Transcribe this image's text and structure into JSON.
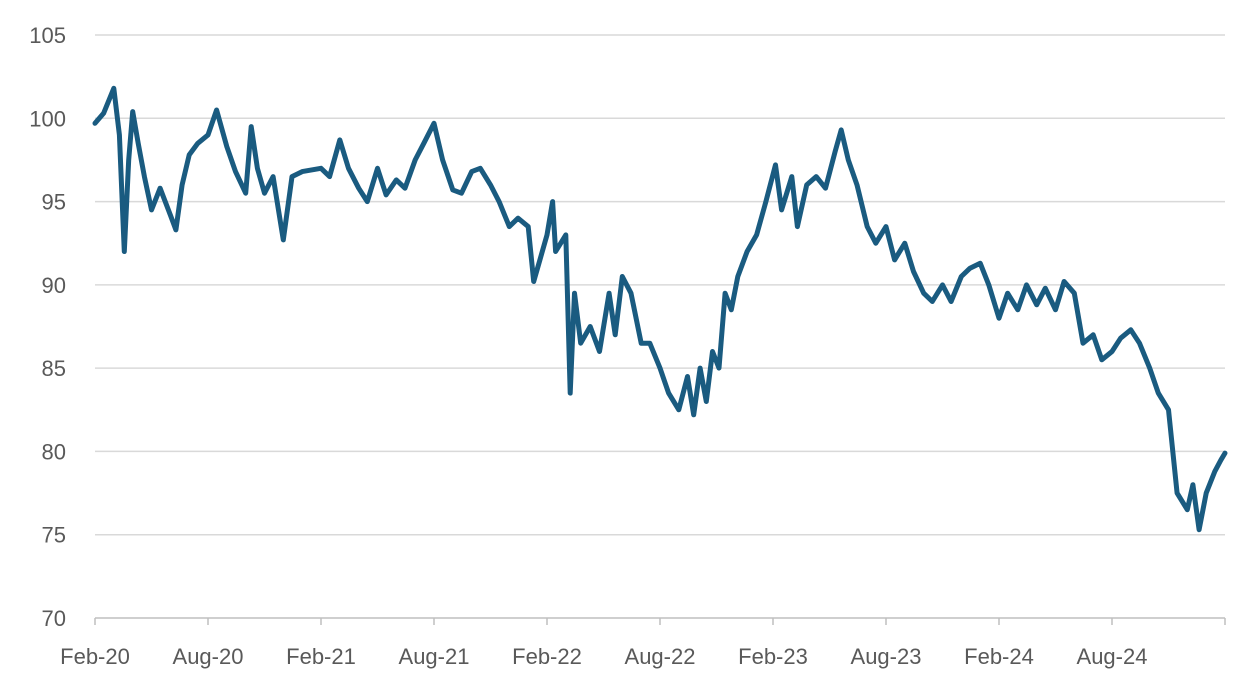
{
  "chart_data": {
    "type": "line",
    "title": "",
    "xlabel": "",
    "ylabel": "",
    "ylim": [
      70,
      105
    ],
    "yticks": [
      70,
      75,
      80,
      85,
      90,
      95,
      100,
      105
    ],
    "xticks": [
      "Feb-20",
      "Aug-20",
      "Feb-21",
      "Aug-21",
      "Feb-22",
      "Aug-22",
      "Feb-23",
      "Aug-23",
      "Feb-24",
      "Aug-24"
    ],
    "xlim": [
      "2020-02",
      "2025-02"
    ],
    "grid": true,
    "legend": "none",
    "colors": {
      "series": "#1a5b80",
      "grid": "#d9d9d9",
      "text": "#595959"
    },
    "series": [
      {
        "points": [
          [
            "2020-02",
            99.7
          ],
          [
            "2020-02-15",
            100.3
          ],
          [
            "2020-03-01",
            101.8
          ],
          [
            "2020-03-10",
            99.0
          ],
          [
            "2020-03-18",
            92.0
          ],
          [
            "2020-03-25",
            97.5
          ],
          [
            "2020-04-01",
            100.4
          ],
          [
            "2020-04-10",
            98.5
          ],
          [
            "2020-04-20",
            96.5
          ],
          [
            "2020-05-01",
            94.5
          ],
          [
            "2020-05-15",
            95.8
          ],
          [
            "2020-06-01",
            94.2
          ],
          [
            "2020-06-10",
            93.3
          ],
          [
            "2020-06-20",
            96.0
          ],
          [
            "2020-07-01",
            97.8
          ],
          [
            "2020-07-15",
            98.5
          ],
          [
            "2020-08-01",
            99.0
          ],
          [
            "2020-08-15",
            100.5
          ],
          [
            "2020-09-01",
            98.3
          ],
          [
            "2020-09-15",
            96.8
          ],
          [
            "2020-10-01",
            95.5
          ],
          [
            "2020-10-10",
            99.5
          ],
          [
            "2020-10-20",
            97.0
          ],
          [
            "2020-11-01",
            95.5
          ],
          [
            "2020-11-15",
            96.5
          ],
          [
            "2020-12-01",
            92.7
          ],
          [
            "2020-12-15",
            96.5
          ],
          [
            "2021-01-01",
            96.8
          ],
          [
            "2021-02-01",
            97.0
          ],
          [
            "2021-02-15",
            96.5
          ],
          [
            "2021-03-01",
            98.7
          ],
          [
            "2021-03-15",
            97.0
          ],
          [
            "2021-04-01",
            95.8
          ],
          [
            "2021-04-15",
            95.0
          ],
          [
            "2021-05-01",
            97.0
          ],
          [
            "2021-05-15",
            95.4
          ],
          [
            "2021-06-01",
            96.3
          ],
          [
            "2021-06-15",
            95.8
          ],
          [
            "2021-07-01",
            97.5
          ],
          [
            "2021-07-15",
            98.5
          ],
          [
            "2021-08-01",
            99.7
          ],
          [
            "2021-08-15",
            97.5
          ],
          [
            "2021-09-01",
            95.7
          ],
          [
            "2021-09-15",
            95.5
          ],
          [
            "2021-10-01",
            96.8
          ],
          [
            "2021-10-15",
            97.0
          ],
          [
            "2021-11-01",
            96.0
          ],
          [
            "2021-11-15",
            95.0
          ],
          [
            "2021-12-01",
            93.5
          ],
          [
            "2021-12-15",
            94.0
          ],
          [
            "2022-01-01",
            93.5
          ],
          [
            "2022-01-10",
            90.2
          ],
          [
            "2022-01-20",
            91.5
          ],
          [
            "2022-02-01",
            93.0
          ],
          [
            "2022-02-10",
            95.0
          ],
          [
            "2022-02-15",
            92.0
          ],
          [
            "2022-03-01",
            93.0
          ],
          [
            "2022-03-08",
            83.5
          ],
          [
            "2022-03-15",
            89.5
          ],
          [
            "2022-03-25",
            86.5
          ],
          [
            "2022-04-10",
            87.5
          ],
          [
            "2022-04-25",
            86.0
          ],
          [
            "2022-05-10",
            89.5
          ],
          [
            "2022-05-20",
            87.0
          ],
          [
            "2022-06-01",
            90.5
          ],
          [
            "2022-06-15",
            89.5
          ],
          [
            "2022-07-01",
            86.5
          ],
          [
            "2022-07-15",
            86.5
          ],
          [
            "2022-08-01",
            85.0
          ],
          [
            "2022-08-15",
            83.5
          ],
          [
            "2022-09-01",
            82.5
          ],
          [
            "2022-09-15",
            84.5
          ],
          [
            "2022-09-25",
            82.2
          ],
          [
            "2022-10-05",
            85.0
          ],
          [
            "2022-10-15",
            83.0
          ],
          [
            "2022-10-25",
            86.0
          ],
          [
            "2022-11-05",
            85.0
          ],
          [
            "2022-11-15",
            89.5
          ],
          [
            "2022-11-25",
            88.5
          ],
          [
            "2022-12-05",
            90.5
          ],
          [
            "2022-12-20",
            92.0
          ],
          [
            "2023-01-05",
            93.0
          ],
          [
            "2023-01-20",
            95.0
          ],
          [
            "2023-02-05",
            97.2
          ],
          [
            "2023-02-15",
            94.5
          ],
          [
            "2023-03-01",
            96.5
          ],
          [
            "2023-03-10",
            93.5
          ],
          [
            "2023-03-25",
            96.0
          ],
          [
            "2023-04-10",
            96.5
          ],
          [
            "2023-04-25",
            95.8
          ],
          [
            "2023-05-10",
            98.0
          ],
          [
            "2023-05-20",
            99.3
          ],
          [
            "2023-06-01",
            97.5
          ],
          [
            "2023-06-15",
            96.0
          ],
          [
            "2023-07-01",
            93.5
          ],
          [
            "2023-07-15",
            92.5
          ],
          [
            "2023-08-01",
            93.5
          ],
          [
            "2023-08-15",
            91.5
          ],
          [
            "2023-09-01",
            92.5
          ],
          [
            "2023-09-15",
            90.8
          ],
          [
            "2023-10-01",
            89.5
          ],
          [
            "2023-10-15",
            89.0
          ],
          [
            "2023-11-01",
            90.0
          ],
          [
            "2023-11-15",
            89.0
          ],
          [
            "2023-12-01",
            90.5
          ],
          [
            "2023-12-15",
            91.0
          ],
          [
            "2024-01-01",
            91.3
          ],
          [
            "2024-01-15",
            90.0
          ],
          [
            "2024-02-01",
            88.0
          ],
          [
            "2024-02-15",
            89.5
          ],
          [
            "2024-03-01",
            88.5
          ],
          [
            "2024-03-15",
            90.0
          ],
          [
            "2024-04-01",
            88.8
          ],
          [
            "2024-04-15",
            89.8
          ],
          [
            "2024-05-01",
            88.5
          ],
          [
            "2024-05-15",
            90.2
          ],
          [
            "2024-06-01",
            89.5
          ],
          [
            "2024-06-15",
            86.5
          ],
          [
            "2024-07-01",
            87.0
          ],
          [
            "2024-07-15",
            85.5
          ],
          [
            "2024-08-01",
            86.0
          ],
          [
            "2024-08-15",
            86.8
          ],
          [
            "2024-09-01",
            87.3
          ],
          [
            "2024-09-15",
            86.5
          ],
          [
            "2024-10-01",
            85.0
          ],
          [
            "2024-10-15",
            83.5
          ],
          [
            "2024-11-01",
            82.5
          ],
          [
            "2024-11-15",
            77.5
          ],
          [
            "2024-12-01",
            76.5
          ],
          [
            "2024-12-10",
            78.0
          ],
          [
            "2024-12-20",
            75.3
          ],
          [
            "2025-01-01",
            77.5
          ],
          [
            "2025-01-15",
            78.8
          ],
          [
            "2025-01-25",
            79.5
          ],
          [
            "2025-02-01",
            79.9
          ]
        ]
      }
    ]
  }
}
